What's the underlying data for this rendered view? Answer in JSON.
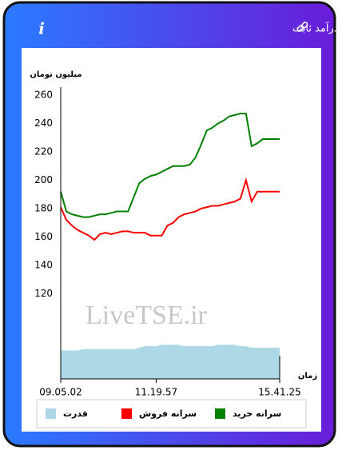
{
  "header": {
    "title": "سرانه ی خرید و فروش حقیقی در صندوق های درآمد ثابت",
    "info": "i"
  },
  "chart_data": {
    "type": "line",
    "y_label": "میلیون تومان",
    "x_label": "زمان",
    "watermark": "LiveTSE.ir",
    "categories": [
      "09.05.02",
      null,
      null,
      null,
      null,
      null,
      null,
      null,
      null,
      null,
      null,
      null,
      null,
      null,
      null,
      null,
      null,
      "11.19.57",
      null,
      null,
      null,
      null,
      null,
      null,
      null,
      null,
      null,
      null,
      null,
      null,
      null,
      null,
      null,
      null,
      null,
      null,
      null,
      null,
      null,
      "15.41.25"
    ],
    "series": [
      {
        "name": "سرانه خرید",
        "color": "#008000",
        "values": [
          192,
          178,
          176,
          175,
          174,
          174,
          175,
          176,
          176,
          177,
          178,
          178,
          178,
          188,
          198,
          201,
          203,
          204,
          206,
          208,
          210,
          210,
          210,
          211,
          216,
          225,
          235,
          237,
          240,
          242,
          245,
          246,
          247,
          247,
          224,
          226,
          229,
          229,
          229,
          229
        ]
      },
      {
        "name": "سرانه فروش",
        "color": "#ff0000",
        "values": [
          181,
          172,
          168,
          165,
          163,
          161,
          158,
          162,
          163,
          162,
          163,
          164,
          164,
          163,
          163,
          163,
          161,
          161,
          161,
          168,
          170,
          174,
          176,
          177,
          178,
          180,
          181,
          182,
          182,
          183,
          184,
          185,
          187,
          200,
          185,
          192,
          192,
          192,
          192,
          192
        ]
      },
      {
        "name": "قدرت",
        "type": "area",
        "color": "#add8e6",
        "values": [
          80,
          80,
          80,
          80,
          81,
          81,
          81,
          81,
          81,
          81,
          81,
          81,
          81,
          81,
          82,
          83,
          83,
          83,
          84,
          84,
          84,
          84,
          83,
          83,
          83,
          83,
          83,
          83,
          84,
          84,
          84,
          84,
          83,
          83,
          82,
          82,
          82,
          82,
          82,
          82
        ]
      }
    ],
    "ylim": [
      60,
      260
    ],
    "yticks": [
      120,
      140,
      160,
      180,
      200,
      220,
      240,
      260
    ],
    "grid": false
  }
}
